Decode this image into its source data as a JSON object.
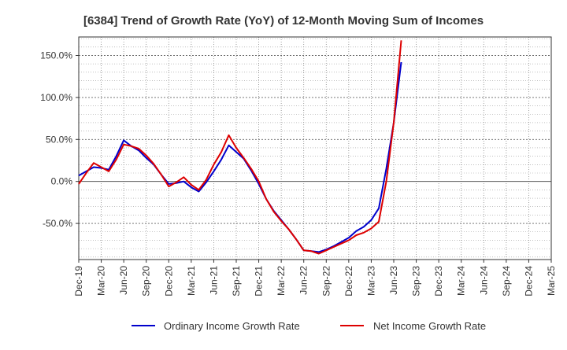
{
  "chart_data": {
    "type": "line",
    "title": "[6384]  Trend of Growth Rate (YoY) of 12-Month Moving Sum of Incomes",
    "xlabel": "",
    "ylabel": "",
    "ylim": [
      -93,
      172
    ],
    "yticks": [
      150,
      100,
      50,
      0,
      -50
    ],
    "ytick_labels": [
      "150.0%",
      "100.0%",
      "50.0%",
      "0.0%",
      "-50.0%"
    ],
    "x_tick_labels": [
      "Dec-19",
      "Mar-20",
      "Jun-20",
      "Sep-20",
      "Dec-20",
      "Mar-21",
      "Jun-21",
      "Sep-21",
      "Dec-21",
      "Mar-22",
      "Jun-22",
      "Sep-22",
      "Dec-22",
      "Mar-23",
      "Jun-23",
      "Sep-23",
      "Dec-23",
      "Mar-24",
      "Jun-24",
      "Sep-24",
      "Dec-24",
      "Mar-25"
    ],
    "x_start": "Dec-19",
    "x_end": "Mar-25",
    "grid": true,
    "legend_position": "bottom",
    "series": [
      {
        "name": "Ordinary Income Growth Rate",
        "color": "#0000cc",
        "values": [
          7,
          12,
          17,
          16,
          14,
          30,
          49,
          42,
          37,
          28,
          20,
          8,
          -3,
          -2,
          0,
          -7,
          -12,
          -1,
          12,
          26,
          43,
          35,
          27,
          13,
          -3,
          -21,
          -35,
          -46,
          -57,
          -69,
          -82,
          -83,
          -84,
          -81,
          -77,
          -72,
          -67,
          -59,
          -54,
          -46,
          -32,
          15,
          70,
          142
        ]
      },
      {
        "name": "Net Income Growth Rate",
        "color": "#dd0000",
        "values": [
          -3,
          10,
          22,
          17,
          12,
          26,
          44,
          42,
          39,
          31,
          21,
          8,
          -6,
          -1,
          5,
          -4,
          -10,
          2,
          20,
          35,
          55,
          40,
          28,
          15,
          0,
          -21,
          -36,
          -47,
          -57,
          -69,
          -82,
          -83,
          -86,
          -82,
          -78,
          -74,
          -70,
          -64,
          -61,
          -56,
          -48,
          0,
          70,
          168
        ]
      }
    ]
  }
}
